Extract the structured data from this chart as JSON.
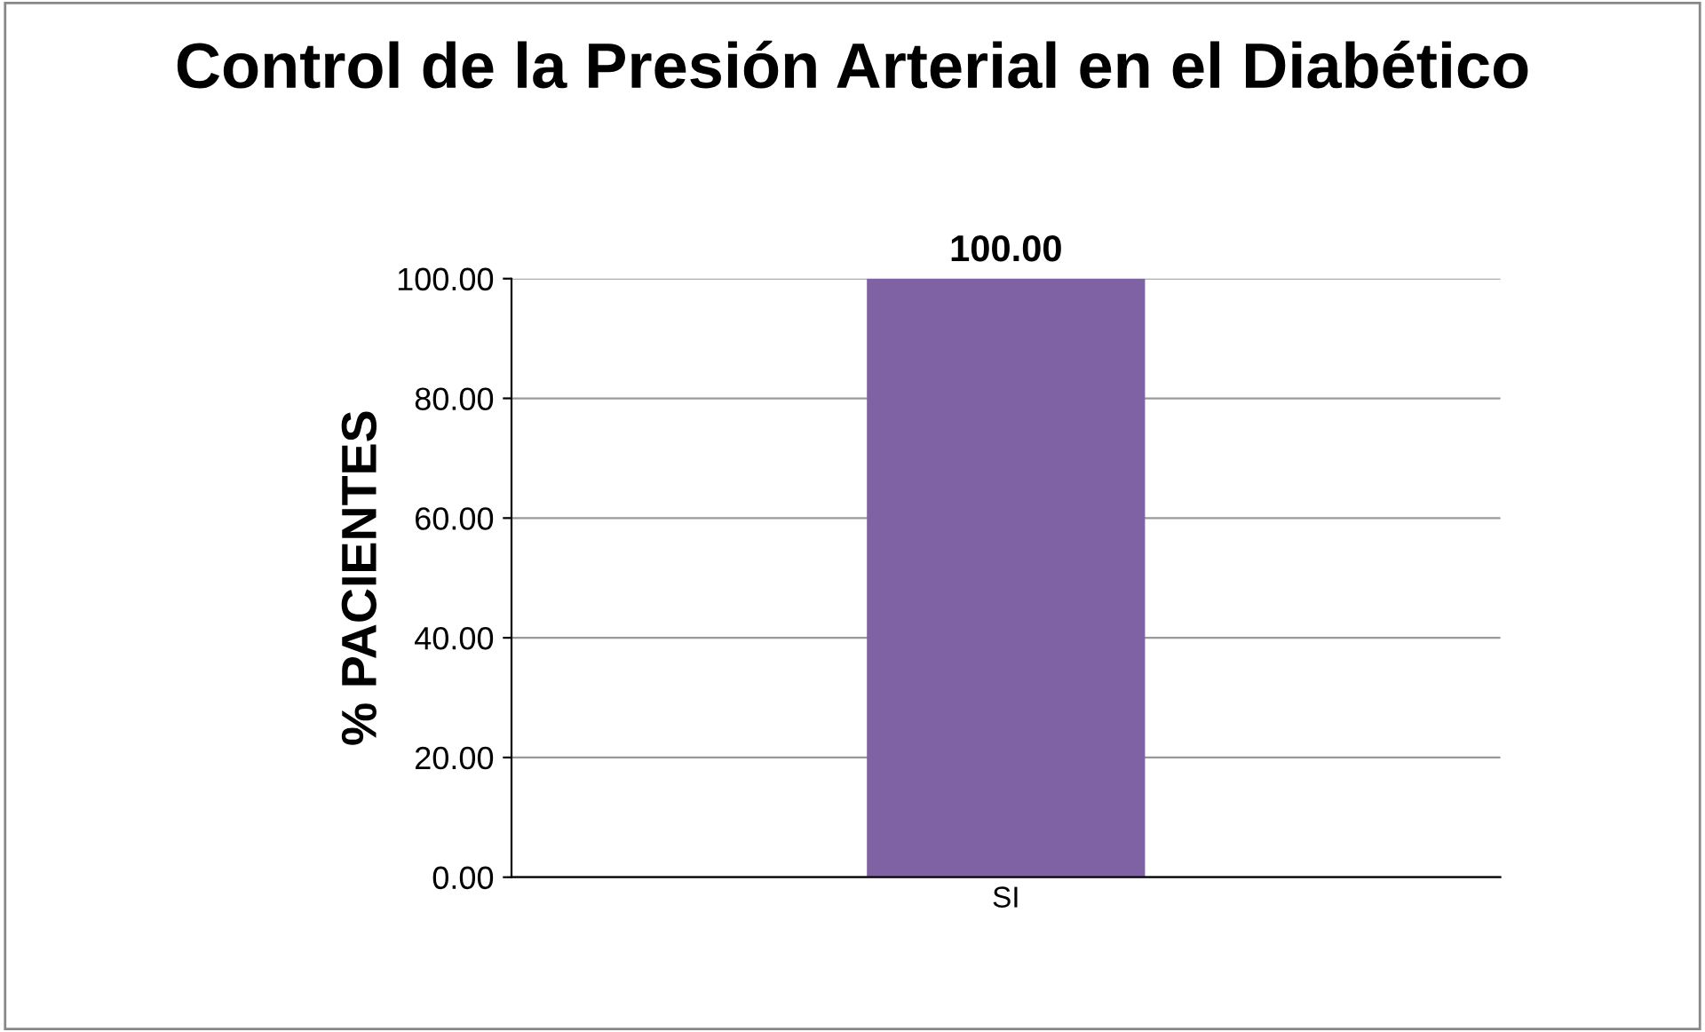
{
  "chart_data": {
    "type": "bar",
    "title": "Control de la Presión Arterial en el Diabético",
    "ylabel": "% PACIENTES",
    "categories": [
      "SI"
    ],
    "values": [
      100
    ],
    "color": "#7e62a3",
    "value_labels": [
      "100.00"
    ],
    "ylim": [
      0,
      100
    ],
    "yticks": [
      {
        "value": 0,
        "label": "0.00"
      },
      {
        "value": 20,
        "label": "20.00"
      },
      {
        "value": 40,
        "label": "40.00"
      },
      {
        "value": 60,
        "label": "60.00"
      },
      {
        "value": 80,
        "label": "80.00"
      },
      {
        "value": 100,
        "label": "100.00"
      }
    ],
    "grid": "y",
    "legend": false
  }
}
